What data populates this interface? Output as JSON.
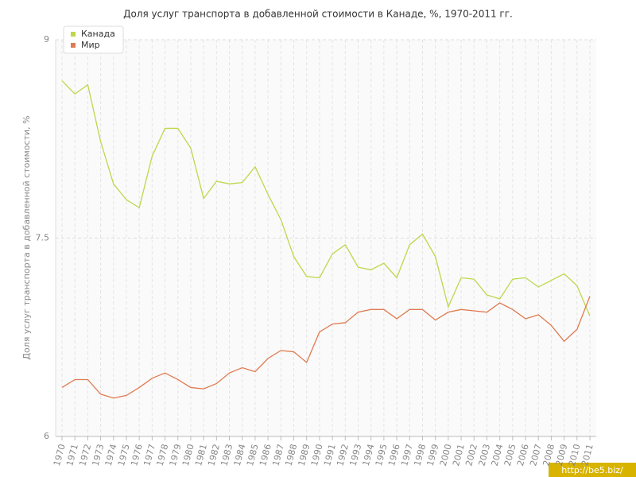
{
  "chart_data": {
    "type": "line",
    "title": "Доля услуг транспорта в добавленной стоимости в Канаде, %, 1970-2011 гг.",
    "y_label": "Доля услуг транспорта в добавленной стоимости, %",
    "watermark": "http://be5.biz/",
    "categories": [
      "1970",
      "1971",
      "1972",
      "1973",
      "1974",
      "1975",
      "1976",
      "1977",
      "1978",
      "1979",
      "1980",
      "1981",
      "1982",
      "1983",
      "1984",
      "1985",
      "1986",
      "1987",
      "1988",
      "1989",
      "1990",
      "1991",
      "1992",
      "1993",
      "1994",
      "1995",
      "1996",
      "1997",
      "1998",
      "1999",
      "2000",
      "2001",
      "2002",
      "2003",
      "2004",
      "2005",
      "2006",
      "2007",
      "2008",
      "2009",
      "2010",
      "2011"
    ],
    "series": [
      {
        "name": "Канада",
        "color": "#bcd84a",
        "values": [
          8.69,
          8.59,
          8.66,
          8.23,
          7.91,
          7.79,
          7.73,
          8.12,
          8.33,
          8.33,
          8.18,
          7.8,
          7.93,
          7.91,
          7.92,
          8.04,
          7.83,
          7.64,
          7.36,
          7.21,
          7.2,
          7.38,
          7.45,
          7.28,
          7.26,
          7.31,
          7.2,
          7.45,
          7.53,
          7.36,
          6.98,
          7.2,
          7.19,
          7.07,
          7.04,
          7.19,
          7.2,
          7.13,
          7.18,
          7.23,
          7.14,
          6.91
        ]
      },
      {
        "name": "Мир",
        "color": "#e07a4f",
        "values": [
          6.37,
          6.43,
          6.43,
          6.32,
          6.29,
          6.31,
          6.37,
          6.44,
          6.48,
          6.43,
          6.37,
          6.36,
          6.4,
          6.48,
          6.52,
          6.49,
          6.59,
          6.65,
          6.64,
          6.56,
          6.79,
          6.85,
          6.86,
          6.94,
          6.96,
          6.96,
          6.89,
          6.96,
          6.96,
          6.88,
          6.94,
          6.96,
          6.95,
          6.94,
          7.01,
          6.96,
          6.89,
          6.92,
          6.84,
          6.72,
          6.81,
          7.06
        ]
      }
    ],
    "ylim": [
      6,
      9
    ],
    "yticks": [
      6,
      7.5,
      9
    ],
    "grid": true,
    "legend": "top-left"
  }
}
